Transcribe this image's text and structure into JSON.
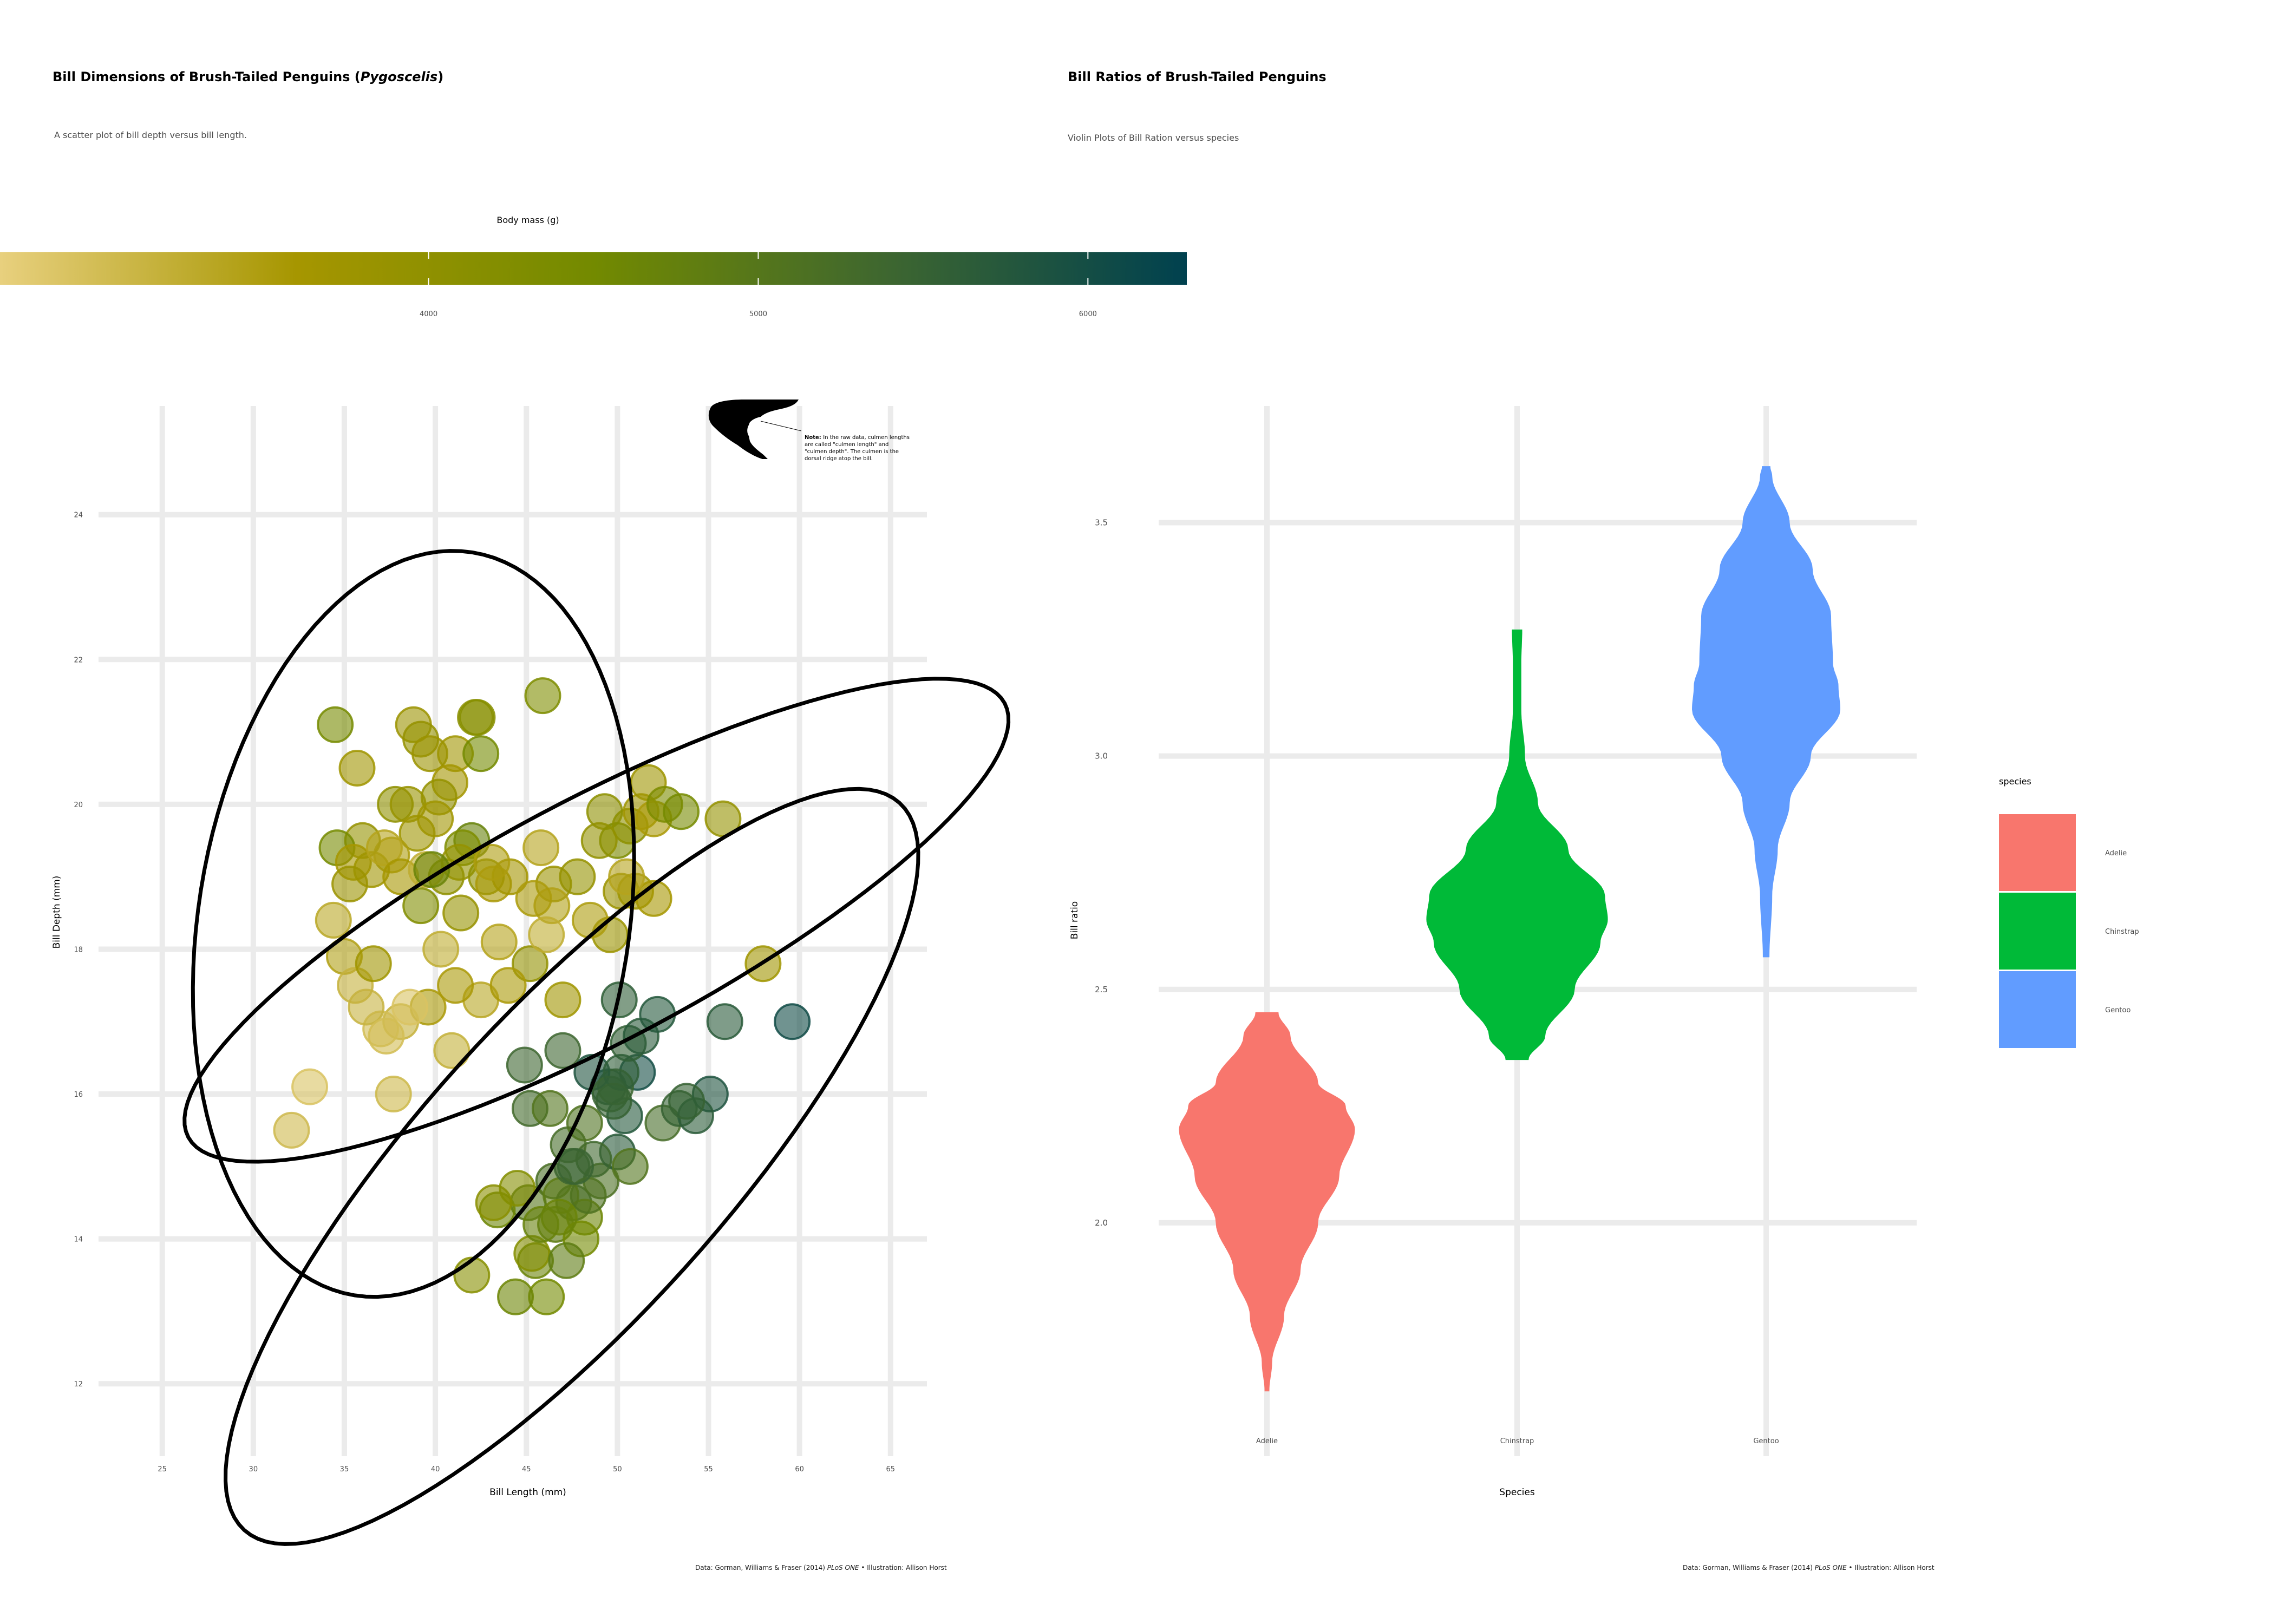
{
  "left_panel": {
    "title_main": "Bill Dimensions of Brush-Tailed Penguins (",
    "title_genus": "Pygoscelis",
    "title_end": ")",
    "subtitle": "A scatter plot of bill depth versus bill length.",
    "caption_prefix": "Data: Gorman, Williams & Fraser (2014) ",
    "caption_journal": "PLoS ONE",
    "caption_suffix": " • Illustration: Allison Horst",
    "annotation_bold": "Note:",
    "annotation_lines": [
      "In the raw data, culmen lengths",
      "are called \"culmen length\" and",
      "\"culmen depth\". The culmen is the",
      "dorsal ridge atop the bill."
    ]
  },
  "right_panel": {
    "title": "Bill Ratios of Brush-Tailed Penguins",
    "subtitle": "Violin Plots of Bill Ration versus species",
    "caption_prefix": "Data: Gorman, Williams & Fraser (2014) ",
    "caption_journal": "PLoS ONE",
    "caption_suffix": " • Illustration: Allison Horst"
  },
  "colors": {
    "gradient": [
      "#e8d07e",
      "#a69600",
      "#738a00",
      "#3d6630",
      "#00414f"
    ],
    "ellipse": "#000000",
    "grid": "#ebebeb",
    "Adelie": "#f8766d",
    "Chinstrap": "#00ba38",
    "Gentoo": "#619cff"
  },
  "chart_data": [
    {
      "type": "scatter",
      "title": "Bill Dimensions of Brush-Tailed Penguins (Pygoscelis)",
      "subtitle": "A scatter plot of bill depth versus bill length.",
      "xlabel": "Bill Length (mm)",
      "ylabel": "Bill Depth (mm)",
      "xlim": [
        21.5,
        67
      ],
      "ylim": [
        11,
        25.5
      ],
      "xticks": [
        25,
        30,
        35,
        40,
        45,
        50,
        55,
        60,
        65
      ],
      "yticks": [
        12,
        14,
        16,
        18,
        20,
        22,
        24
      ],
      "grid": true,
      "legend": {
        "title": "Body mass (g)",
        "type": "colorbar",
        "placement": "top",
        "range": [
          2700,
          6300
        ],
        "ticks": [
          4000,
          5000,
          6000
        ]
      },
      "ellipses": [
        {
          "center": [
            38.8,
            18.35
          ],
          "rx": 8.3,
          "ry": 4.75,
          "rotation_deg": -81
        },
        {
          "center": [
            48.85,
            18.4
          ],
          "rx": 10.2,
          "ry": 2.65,
          "rotation_deg": -28
        },
        {
          "center": [
            47.5,
            15.0
          ],
          "rx": 10.8,
          "ry": 3.35,
          "rotation_deg": -48
        }
      ],
      "points": [
        [
          34.5,
          21.1,
          4450
        ],
        [
          38.8,
          21.1,
          3800
        ],
        [
          39.2,
          20.9,
          3900
        ],
        [
          41.1,
          20.7,
          3700
        ],
        [
          42.2,
          21.2,
          4100
        ],
        [
          45.9,
          21.5,
          4300
        ],
        [
          42.5,
          20.7,
          4500
        ],
        [
          35.7,
          20.5,
          3700
        ],
        [
          39.7,
          20.7,
          3800
        ],
        [
          40.8,
          20.3,
          3650
        ],
        [
          40.2,
          20.1,
          3900
        ],
        [
          37.8,
          20.0,
          4000
        ],
        [
          38.5,
          20.0,
          3850
        ],
        [
          40.0,
          19.8,
          3700
        ],
        [
          39.0,
          19.6,
          3750
        ],
        [
          42.0,
          19.5,
          4700
        ],
        [
          41.5,
          19.4,
          4300
        ],
        [
          37.6,
          19.3,
          3500
        ],
        [
          36.0,
          19.5,
          3900
        ],
        [
          34.6,
          19.4,
          4450
        ],
        [
          35.5,
          19.2,
          3600
        ],
        [
          36.5,
          19.1,
          3700
        ],
        [
          37.2,
          19.4,
          3400
        ],
        [
          38.1,
          19.0,
          3600
        ],
        [
          39.5,
          19.1,
          3250
        ],
        [
          40.6,
          19.0,
          4000
        ],
        [
          41.3,
          19.2,
          3900
        ],
        [
          42.8,
          19.0,
          4000
        ],
        [
          43.2,
          18.9,
          3550
        ],
        [
          44.1,
          19.0,
          3650
        ],
        [
          45.8,
          19.4,
          3400
        ],
        [
          46.5,
          18.9,
          3800
        ],
        [
          47.8,
          19.0,
          3900
        ],
        [
          49.3,
          19.9,
          4050
        ],
        [
          50.0,
          19.5,
          4300
        ],
        [
          50.7,
          19.7,
          4050
        ],
        [
          51.3,
          19.9,
          3700
        ],
        [
          51.7,
          20.3,
          3750
        ],
        [
          52.0,
          19.8,
          3550
        ],
        [
          52.6,
          20.0,
          4350
        ],
        [
          53.5,
          19.9,
          4450
        ],
        [
          55.8,
          19.8,
          3900
        ],
        [
          49.0,
          19.5,
          3950
        ],
        [
          50.2,
          18.8,
          3800
        ],
        [
          51.0,
          18.8,
          3750
        ],
        [
          52.0,
          18.7,
          3600
        ],
        [
          50.5,
          19.0,
          3400
        ],
        [
          49.6,
          18.2,
          3775
        ],
        [
          48.5,
          18.4,
          3500
        ],
        [
          47.0,
          17.3,
          3700
        ],
        [
          58.0,
          17.8,
          3700
        ],
        [
          46.4,
          18.6,
          3450
        ],
        [
          45.2,
          17.8,
          3950
        ],
        [
          46.1,
          18.2,
          3250
        ],
        [
          45.4,
          18.7,
          3525
        ],
        [
          42.5,
          17.3,
          3350
        ],
        [
          43.5,
          18.1,
          3400
        ],
        [
          44.0,
          17.5,
          3550
        ],
        [
          41.1,
          17.5,
          3550
        ],
        [
          40.9,
          16.6,
          3200
        ],
        [
          39.6,
          17.2,
          3550
        ],
        [
          38.1,
          17.0,
          3175
        ],
        [
          37.0,
          16.9,
          3000
        ],
        [
          36.2,
          17.2,
          3150
        ],
        [
          35.3,
          18.9,
          3800
        ],
        [
          34.4,
          18.4,
          3325
        ],
        [
          33.1,
          16.1,
          2900
        ],
        [
          32.1,
          15.5,
          3050
        ],
        [
          35.0,
          17.9,
          3450
        ],
        [
          35.6,
          17.5,
          3175
        ],
        [
          36.6,
          17.8,
          3700
        ],
        [
          37.7,
          16.0,
          3075
        ],
        [
          37.3,
          16.8,
          3000
        ],
        [
          38.6,
          17.2,
          2900
        ],
        [
          39.2,
          18.6,
          4250
        ],
        [
          39.8,
          19.1,
          4650
        ],
        [
          40.3,
          18.0,
          3250
        ],
        [
          41.4,
          18.5,
          3875
        ],
        [
          42.3,
          21.2,
          4150
        ],
        [
          43.1,
          19.2,
          3500
        ],
        [
          44.9,
          16.4,
          5400
        ],
        [
          45.5,
          13.7,
          4650
        ],
        [
          46.1,
          13.2,
          4500
        ],
        [
          47.6,
          14.5,
          5400
        ],
        [
          48.2,
          14.3,
          4600
        ],
        [
          49.1,
          14.8,
          5150
        ],
        [
          50.0,
          15.2,
          5700
        ],
        [
          50.7,
          15.0,
          5050
        ],
        [
          51.1,
          16.3,
          6000
        ],
        [
          52.5,
          15.6,
          5250
        ],
        [
          53.4,
          15.8,
          5500
        ],
        [
          55.9,
          17.0,
          5700
        ],
        [
          59.6,
          17.0,
          6050
        ],
        [
          55.1,
          16.0,
          5850
        ],
        [
          54.3,
          15.7,
          5650
        ],
        [
          50.4,
          15.7,
          5750
        ],
        [
          49.5,
          16.1,
          5850
        ],
        [
          48.7,
          15.1,
          5350
        ],
        [
          47.3,
          15.3,
          5250
        ],
        [
          46.5,
          14.8,
          5200
        ],
        [
          45.1,
          14.5,
          5000
        ],
        [
          43.4,
          14.4,
          4600
        ],
        [
          42.0,
          13.5,
          4150
        ],
        [
          44.4,
          13.2,
          4600
        ],
        [
          46.9,
          14.6,
          4875
        ],
        [
          47.5,
          15.0,
          5400
        ],
        [
          48.4,
          14.6,
          5100
        ],
        [
          49.9,
          16.1,
          5400
        ],
        [
          50.6,
          16.7,
          5550
        ],
        [
          45.2,
          15.8,
          5300
        ],
        [
          46.3,
          15.8,
          5050
        ],
        [
          47.0,
          16.6,
          5400
        ],
        [
          48.6,
          16.3,
          5850
        ],
        [
          49.6,
          16.0,
          5450
        ],
        [
          50.2,
          16.3,
          5600
        ],
        [
          51.3,
          16.8,
          5700
        ],
        [
          52.2,
          17.1,
          5750
        ],
        [
          53.8,
          15.9,
          5500
        ],
        [
          45.3,
          13.8,
          4200
        ],
        [
          47.7,
          15.0,
          5450
        ],
        [
          46.6,
          14.2,
          4850
        ],
        [
          43.2,
          14.5,
          4100
        ],
        [
          48.0,
          14.0,
          4500
        ],
        [
          49.8,
          15.9,
          5500
        ],
        [
          47.2,
          13.7,
          4850
        ],
        [
          46.8,
          14.3,
          4650
        ],
        [
          44.5,
          14.7,
          4200
        ],
        [
          50.1,
          17.3,
          5600
        ],
        [
          48.2,
          15.6,
          5100
        ],
        [
          45.8,
          14.2,
          4700
        ]
      ]
    },
    {
      "type": "violin",
      "title": "Bill Ratios of Brush-Tailed Penguins",
      "subtitle": "Violin Plots of Bill Ration versus species",
      "xlabel": "Species",
      "ylabel": "Bill ratio",
      "categories": [
        "Adelie",
        "Chinstrap",
        "Gentoo"
      ],
      "ylim": [
        1.5,
        3.75
      ],
      "yticks": [
        2.0,
        2.5,
        3.0,
        3.5
      ],
      "grid": true,
      "legend": {
        "title": "species",
        "placement": "right"
      },
      "series": [
        {
          "name": "Adelie",
          "y_range": [
            1.64,
            2.45
          ],
          "profile": [
            [
              1.64,
              0.02
            ],
            [
              1.7,
              0.05
            ],
            [
              1.8,
              0.18
            ],
            [
              1.9,
              0.36
            ],
            [
              2.0,
              0.55
            ],
            [
              2.1,
              0.78
            ],
            [
              2.2,
              0.95
            ],
            [
              2.25,
              0.85
            ],
            [
              2.3,
              0.55
            ],
            [
              2.4,
              0.25
            ],
            [
              2.45,
              0.12
            ]
          ]
        },
        {
          "name": "Chinstrap",
          "y_range": [
            2.35,
            3.27
          ],
          "profile": [
            [
              2.35,
              0.12
            ],
            [
              2.4,
              0.3
            ],
            [
              2.5,
              0.62
            ],
            [
              2.6,
              0.9
            ],
            [
              2.65,
              0.98
            ],
            [
              2.7,
              0.95
            ],
            [
              2.8,
              0.55
            ],
            [
              2.9,
              0.22
            ],
            [
              3.0,
              0.08
            ],
            [
              3.1,
              0.04
            ],
            [
              3.2,
              0.04
            ],
            [
              3.27,
              0.05
            ]
          ]
        },
        {
          "name": "Gentoo",
          "y_range": [
            2.57,
            3.62
          ],
          "profile": [
            [
              2.57,
              0.03
            ],
            [
              2.7,
              0.06
            ],
            [
              2.8,
              0.12
            ],
            [
              2.9,
              0.25
            ],
            [
              3.0,
              0.48
            ],
            [
              3.1,
              0.8
            ],
            [
              3.15,
              0.78
            ],
            [
              3.2,
              0.72
            ],
            [
              3.3,
              0.7
            ],
            [
              3.4,
              0.5
            ],
            [
              3.5,
              0.25
            ],
            [
              3.6,
              0.06
            ],
            [
              3.62,
              0.04
            ]
          ]
        }
      ]
    }
  ]
}
